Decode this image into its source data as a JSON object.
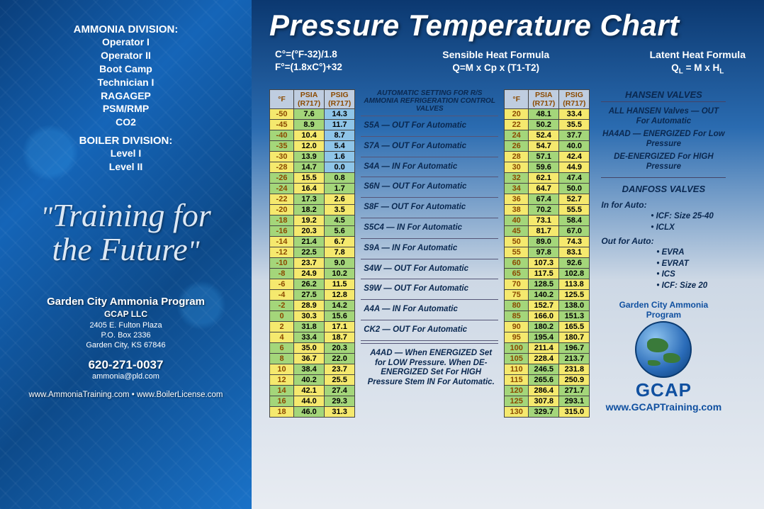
{
  "left": {
    "div1_head": "AMMONIA DIVISION:",
    "div1_items": [
      "Operator I",
      "Operator II",
      "Boot Camp",
      "Technician I",
      "RAGAGEP",
      "PSM/RMP",
      "CO2"
    ],
    "div2_head": "BOILER DIVISION:",
    "div2_items": [
      "Level I",
      "Level II"
    ],
    "tagline1": "Training for",
    "tagline2": "the Future",
    "org": "Garden City Ammonia Program",
    "org_sub": "GCAP LLC",
    "addr1": "2405 E. Fulton Plaza",
    "addr2": "P.O. Box 2336",
    "addr3": "Garden City, KS 67846",
    "phone": "620-271-0037",
    "email": "ammonia@pld.com",
    "sites": "www.AmmoniaTraining.com • www.BoilerLicense.com"
  },
  "right": {
    "title": "Pressure Temperature Chart",
    "conv1": "C°=(°F-32)/1.8",
    "conv2": "F°=(1.8xC°)+32",
    "sensible_h": "Sensible Heat Formula",
    "sensible_f": "Q=M x Cp x (T1-T2)",
    "latent_h": "Latent Heat Formula",
    "latent_f": "QL = M x  HL",
    "th_f": "°F",
    "th_psia": "PSIA (R717)",
    "th_psig": "PSIG (R717)",
    "table1": [
      [
        "-50",
        "7.6",
        "14.3"
      ],
      [
        "-45",
        "8.9",
        "11.7"
      ],
      [
        "-40",
        "10.4",
        "8.7"
      ],
      [
        "-35",
        "12.0",
        "5.4"
      ],
      [
        "-30",
        "13.9",
        "1.6"
      ],
      [
        "-28",
        "14.7",
        "0.0"
      ],
      [
        "-26",
        "15.5",
        "0.8"
      ],
      [
        "-24",
        "16.4",
        "1.7"
      ],
      [
        "-22",
        "17.3",
        "2.6"
      ],
      [
        "-20",
        "18.2",
        "3.5"
      ],
      [
        "-18",
        "19.2",
        "4.5"
      ],
      [
        "-16",
        "20.3",
        "5.6"
      ],
      [
        "-14",
        "21.4",
        "6.7"
      ],
      [
        "-12",
        "22.5",
        "7.8"
      ],
      [
        "-10",
        "23.7",
        "9.0"
      ],
      [
        "-8",
        "24.9",
        "10.2"
      ],
      [
        "-6",
        "26.2",
        "11.5"
      ],
      [
        "-4",
        "27.5",
        "12.8"
      ],
      [
        "-2",
        "28.9",
        "14.2"
      ],
      [
        "0",
        "30.3",
        "15.6"
      ],
      [
        "2",
        "31.8",
        "17.1"
      ],
      [
        "4",
        "33.4",
        "18.7"
      ],
      [
        "6",
        "35.0",
        "20.3"
      ],
      [
        "8",
        "36.7",
        "22.0"
      ],
      [
        "10",
        "38.4",
        "23.7"
      ],
      [
        "12",
        "40.2",
        "25.5"
      ],
      [
        "14",
        "42.1",
        "27.4"
      ],
      [
        "16",
        "44.0",
        "29.3"
      ],
      [
        "18",
        "46.0",
        "31.3"
      ]
    ],
    "table2": [
      [
        "20",
        "48.1",
        "33.4"
      ],
      [
        "22",
        "50.2",
        "35.5"
      ],
      [
        "24",
        "52.4",
        "37.7"
      ],
      [
        "26",
        "54.7",
        "40.0"
      ],
      [
        "28",
        "57.1",
        "42.4"
      ],
      [
        "30",
        "59.6",
        "44.9"
      ],
      [
        "32",
        "62.1",
        "47.4"
      ],
      [
        "34",
        "64.7",
        "50.0"
      ],
      [
        "36",
        "67.4",
        "52.7"
      ],
      [
        "38",
        "70.2",
        "55.5"
      ],
      [
        "40",
        "73.1",
        "58.4"
      ],
      [
        "45",
        "81.7",
        "67.0"
      ],
      [
        "50",
        "89.0",
        "74.3"
      ],
      [
        "55",
        "97.8",
        "83.1"
      ],
      [
        "60",
        "107.3",
        "92.6"
      ],
      [
        "65",
        "117.5",
        "102.8"
      ],
      [
        "70",
        "128.5",
        "113.8"
      ],
      [
        "75",
        "140.2",
        "125.5"
      ],
      [
        "80",
        "152.7",
        "138.0"
      ],
      [
        "85",
        "166.0",
        "151.3"
      ],
      [
        "90",
        "180.2",
        "165.5"
      ],
      [
        "95",
        "195.4",
        "180.7"
      ],
      [
        "100",
        "211.4",
        "196.7"
      ],
      [
        "105",
        "228.4",
        "213.7"
      ],
      [
        "110",
        "246.5",
        "231.8"
      ],
      [
        "115",
        "265.6",
        "250.9"
      ],
      [
        "120",
        "286.4",
        "271.7"
      ],
      [
        "125",
        "307.8",
        "293.1"
      ],
      [
        "130",
        "329.7",
        "315.0"
      ]
    ],
    "table1_psig_blue_rows": 6,
    "valves_head": "AUTOMATIC SETTING FOR R/S AMMONIA REFRIGERATION CONTROL VALVES",
    "valves": [
      "S5A — OUT For Automatic",
      "S7A — OUT For Automatic",
      "S4A — IN For Automatic",
      "S6N — OUT For Automatic",
      "S8F — OUT For Automatic",
      "S5C4 — IN For Automatic",
      "S9A — IN For Automatic",
      "S4W — OUT For Automatic",
      "S9W — OUT For Automatic",
      "A4A — IN For Automatic",
      "CK2 — OUT For Automatic"
    ],
    "a4ad": "A4AD — When ENERGIZED Set for LOW Pressure. When DE-ENERGIZED Set For HIGH Pressure Stem IN For Automatic.",
    "hansen_h": "HANSEN VALVES",
    "hansen1": "ALL HANSEN Valves — OUT For Automatic",
    "hansen2": "HA4AD — ENERGIZED For Low Pressure",
    "hansen3": "DE-ENERGIZED For HIGH Pressure",
    "danfoss_h": "DANFOSS VALVES",
    "danfoss_in_h": "In for Auto:",
    "danfoss_in": [
      "• ICF: Size 25-40",
      "• ICLX"
    ],
    "danfoss_out_h": "Out for Auto:",
    "danfoss_out": [
      "• EVRA",
      "• EVRAT",
      "• ICS",
      "• ICF: Size 20"
    ],
    "logo_ring_t": "Garden City Ammonia Program",
    "gcap": "GCAP",
    "gcap_url": "www.GCAPTraining.com"
  }
}
